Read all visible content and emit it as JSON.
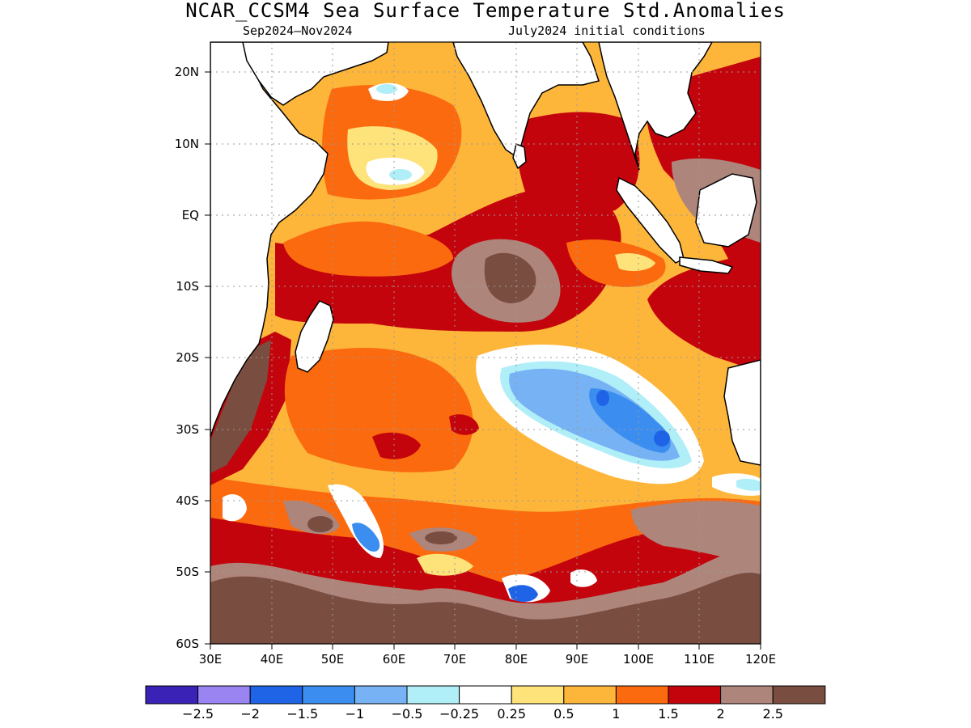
{
  "title": "NCAR_CCSM4 Sea Surface Temperature Std.Anomalies",
  "subtitle_left": "Sep2024–Nov2024",
  "subtitle_right": "July2024 initial conditions",
  "lat_ticks": [
    "20N",
    "10N",
    "EQ",
    "10S",
    "20S",
    "30S",
    "40S",
    "50S",
    "60S"
  ],
  "lon_ticks": [
    "30E",
    "40E",
    "50E",
    "60E",
    "70E",
    "80E",
    "90E",
    "100E",
    "110E",
    "120E"
  ],
  "colorbar": {
    "colors": [
      "#3a22b6",
      "#9a84f2",
      "#1f64e6",
      "#3b8ef0",
      "#76b2f4",
      "#b0eef8",
      "#ffffff",
      "#fee27a",
      "#fdb63a",
      "#fb6a0f",
      "#c4040c",
      "#ae857b",
      "#7a4d41"
    ],
    "labels": [
      "−2.5",
      "−2",
      "−1.5",
      "−1",
      "−0.5",
      "−0.25",
      "0.25",
      "0.5",
      "1",
      "1.5",
      "2",
      "2.5"
    ]
  }
}
